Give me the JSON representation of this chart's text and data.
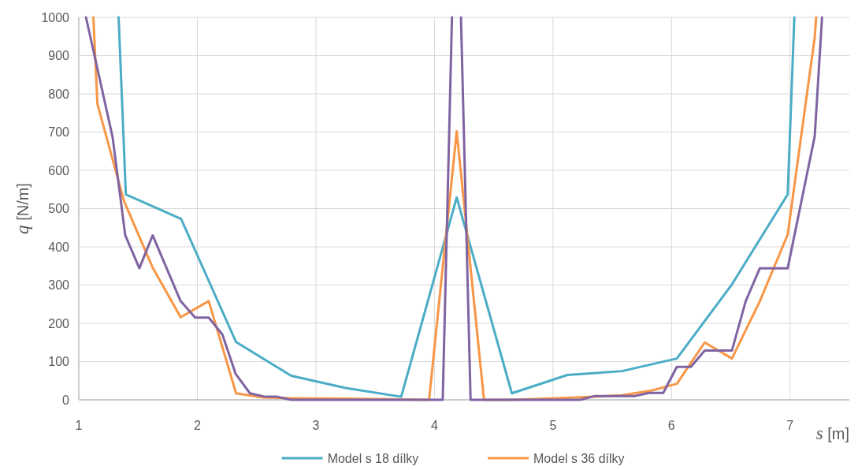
{
  "chart_data": {
    "type": "line",
    "xlabel": "s [m]",
    "ylabel": "q [N/m]",
    "xlim": [
      1,
      7.5
    ],
    "xticks": [
      1,
      2,
      3,
      4,
      5,
      6,
      7
    ],
    "ylim": [
      0,
      1000
    ],
    "yticks": [
      0,
      100,
      200,
      300,
      400,
      500,
      600,
      700,
      800,
      900,
      1000
    ],
    "grid": true,
    "legend": "bottom",
    "line_style": "solid",
    "series": [
      {
        "name": "Model s 18 dílky",
        "color": "#4bacc6",
        "x": [
          1.336,
          1.397,
          1.863,
          2.327,
          2.792,
          3.251,
          3.72,
          4.188,
          4.653,
          5.121,
          5.582,
          6.045,
          6.51,
          6.98,
          7.036
        ],
        "values": [
          1000,
          537,
          473,
          151,
          63,
          31,
          8,
          529,
          17,
          65,
          75,
          108,
          302,
          537,
          1000
        ]
      },
      {
        "name": "Model s 36 dílky",
        "color": "#f79646",
        "x": [
          1.123,
          1.157,
          1.381,
          1.621,
          1.859,
          2.096,
          2.327,
          2.557,
          2.79,
          3.25,
          3.72,
          3.955,
          4.188,
          4.418,
          4.65,
          5.12,
          5.35,
          5.58,
          5.815,
          6.045,
          6.28,
          6.51,
          6.745,
          6.98,
          7.208,
          7.22
        ],
        "values": [
          1000,
          774,
          520,
          347,
          216,
          258,
          17,
          6,
          4,
          3,
          1,
          0,
          702,
          0,
          0,
          5,
          8,
          12,
          23,
          42,
          150,
          108,
          258,
          432,
          948,
          1000
        ]
      },
      {
        "color": "#8064a2",
        "x": [
          1.061,
          1.285,
          1.392,
          1.511,
          1.623,
          1.859,
          1.982,
          2.096,
          2.211,
          2.323,
          2.444,
          2.558,
          2.676,
          2.79,
          4.07,
          4.148,
          4.188,
          4.224,
          4.305,
          5.231,
          5.352,
          5.692,
          5.813,
          5.93,
          6.045,
          6.163,
          6.28,
          6.51,
          6.626,
          6.745,
          6.98,
          7.208,
          7.27
        ],
        "values": [
          1000,
          687,
          430,
          344,
          430,
          258,
          215,
          215,
          171,
          68,
          17,
          9,
          8,
          0,
          0,
          1000,
          null,
          1000,
          0,
          0,
          10,
          10,
          18,
          18,
          86,
          86,
          129,
          129,
          258,
          344,
          344,
          689,
          1000
        ]
      }
    ]
  }
}
